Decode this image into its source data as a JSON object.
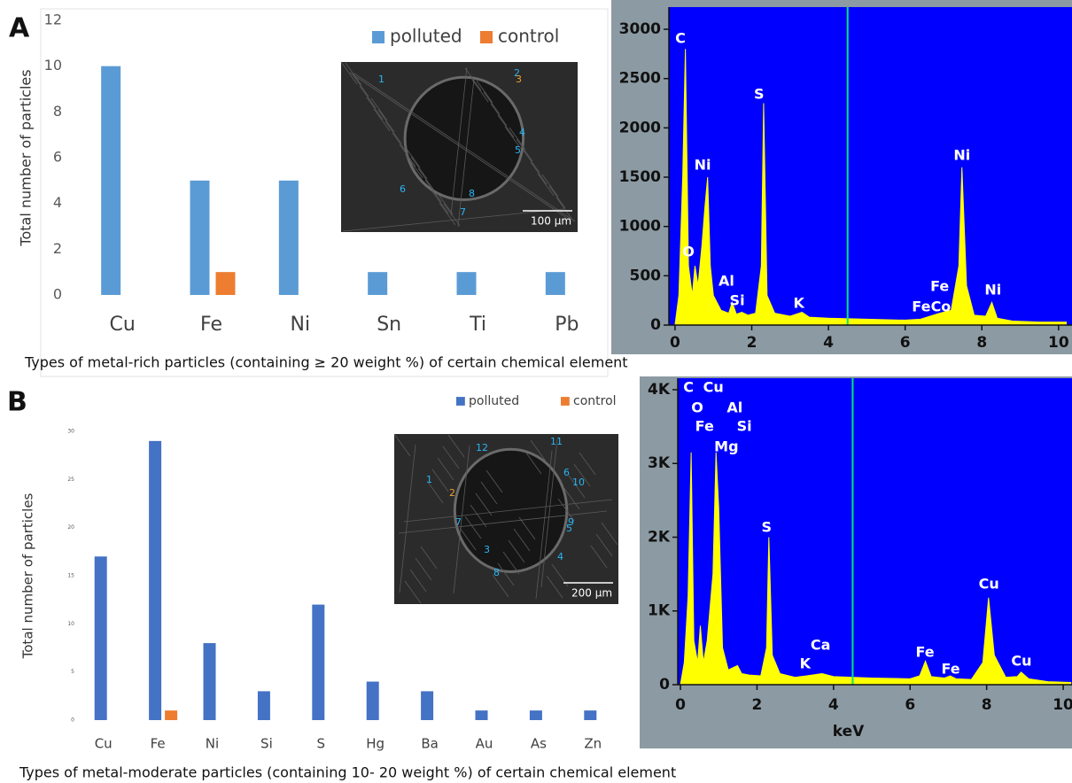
{
  "chart_data": [
    {
      "type": "bar",
      "panel_label": "A",
      "ylabel": "Total number of particles",
      "xlabel": "Types of metal-rich particles (containing ≥ 20 weight %) of certain chemical element",
      "categories": [
        "Cu",
        "Fe",
        "Ni",
        "Sn",
        "Ti",
        "Pb"
      ],
      "series": [
        {
          "name": "polluted",
          "color": "#5b9bd5",
          "values": [
            10,
            5,
            5,
            1,
            1,
            1
          ]
        },
        {
          "name": "control",
          "color": "#ed7d31",
          "values": [
            0,
            1,
            0,
            0,
            0,
            0
          ]
        }
      ],
      "ylim": [
        0,
        12
      ],
      "yticks": [
        0,
        2,
        4,
        6,
        8,
        10,
        12
      ],
      "grid": false,
      "legend": "top-right",
      "inset": {
        "labels": [
          "1",
          "2",
          "3",
          "4",
          "5",
          "6",
          "7",
          "8"
        ],
        "scale_bar": "100 µm"
      }
    },
    {
      "type": "spectrum",
      "color": "#ffff00",
      "background": "#0000ff",
      "cursor_x": 4.5,
      "x": [
        0,
        0.1,
        0.2,
        0.27,
        0.35,
        0.45,
        0.52,
        0.6,
        0.7,
        0.78,
        0.85,
        0.92,
        1.0,
        1.2,
        1.4,
        1.49,
        1.6,
        1.74,
        1.9,
        2.1,
        2.25,
        2.31,
        2.4,
        2.6,
        3.0,
        3.31,
        3.5,
        4.0,
        5,
        6,
        6.4,
        6.9,
        7.2,
        7.4,
        7.48,
        7.6,
        7.8,
        8.1,
        8.26,
        8.4,
        8.8,
        9.5,
        10.2
      ],
      "values": [
        0,
        300,
        1500,
        2800,
        600,
        300,
        600,
        400,
        800,
        1200,
        1500,
        600,
        300,
        150,
        120,
        230,
        110,
        130,
        100,
        120,
        600,
        2250,
        300,
        120,
        90,
        130,
        80,
        70,
        60,
        50,
        60,
        120,
        150,
        600,
        1600,
        400,
        100,
        90,
        230,
        70,
        40,
        30,
        30
      ],
      "xlim": [
        -0.16,
        10.35
      ],
      "xticks": [
        0,
        2,
        4,
        6,
        8,
        10
      ],
      "ylim": [
        0,
        3225
      ],
      "yticks": [
        0,
        500,
        1000,
        1500,
        2000,
        2500,
        3000
      ],
      "annotations": [
        {
          "text": "C",
          "x": 0.14,
          "y": 2900
        },
        {
          "text": "Ni",
          "x": 0.72,
          "y": 1617
        },
        {
          "text": "O",
          "x": 0.35,
          "y": 737
        },
        {
          "text": "Al",
          "x": 1.34,
          "y": 440
        },
        {
          "text": "Si",
          "x": 1.62,
          "y": 243
        },
        {
          "text": "S",
          "x": 2.19,
          "y": 2336
        },
        {
          "text": "K",
          "x": 3.23,
          "y": 216
        },
        {
          "text": "Fe",
          "x": 6.42,
          "y": 180
        },
        {
          "text": "Co",
          "x": 6.93,
          "y": 180
        },
        {
          "text": "Fe",
          "x": 6.9,
          "y": 386
        },
        {
          "text": "Ni",
          "x": 7.48,
          "y": 1716
        },
        {
          "text": "Ni",
          "x": 8.29,
          "y": 350
        }
      ]
    },
    {
      "type": "bar",
      "panel_label": "B",
      "ylabel": "Total number of particles",
      "xlabel": "Types of metal-moderate particles (containing 10- 20 weight %) of certain chemical element",
      "categories": [
        "Cu",
        "Fe",
        "Ni",
        "Si",
        "S",
        "Hg",
        "Ba",
        "Au",
        "As",
        "Zn"
      ],
      "series": [
        {
          "name": "polluted",
          "color": "#4472c4",
          "values": [
            17,
            29,
            8,
            3,
            12,
            4,
            3,
            1,
            1,
            1
          ]
        },
        {
          "name": "control",
          "color": "#ed7d31",
          "values": [
            0,
            1,
            0,
            0,
            0,
            0,
            0,
            0,
            0,
            0
          ]
        }
      ],
      "ylim": [
        0,
        30
      ],
      "yticks": [
        0,
        5,
        10,
        15,
        20,
        25,
        30
      ],
      "grid": false,
      "legend": "top-right",
      "inset": {
        "labels": [
          "1",
          "2",
          "3",
          "4",
          "5",
          "6",
          "7",
          "8",
          "9",
          "10",
          "11",
          "12"
        ],
        "scale_bar": "200 µm"
      }
    },
    {
      "type": "spectrum",
      "color": "#ffff00",
      "background": "#0000ff",
      "cursor_x": 4.5,
      "xlabel": "keV",
      "x": [
        0,
        0.1,
        0.2,
        0.28,
        0.35,
        0.45,
        0.52,
        0.6,
        0.7,
        0.85,
        0.93,
        1.0,
        1.1,
        1.25,
        1.49,
        1.6,
        1.8,
        2.1,
        2.25,
        2.31,
        2.4,
        2.6,
        3.0,
        3.3,
        3.7,
        4.0,
        5,
        6,
        6.25,
        6.4,
        6.55,
        6.9,
        7.05,
        7.2,
        7.6,
        7.9,
        8.05,
        8.2,
        8.5,
        8.8,
        8.9,
        9.1,
        9.6,
        10.2
      ],
      "values": [
        0,
        300,
        1200,
        3150,
        600,
        300,
        800,
        300,
        600,
        1500,
        3150,
        2400,
        500,
        200,
        260,
        150,
        130,
        120,
        500,
        2000,
        400,
        150,
        100,
        120,
        150,
        110,
        90,
        80,
        120,
        320,
        110,
        90,
        120,
        80,
        70,
        300,
        1180,
        400,
        100,
        110,
        170,
        80,
        40,
        30
      ],
      "xlim": [
        -0.07,
        10.23
      ],
      "xticks": [
        0,
        2,
        4,
        6,
        8,
        10
      ],
      "ylim": [
        0,
        4156
      ],
      "yticks": [
        0,
        {
          "value": 1000,
          "label": "1K"
        },
        {
          "value": 2000,
          "label": "2K"
        },
        {
          "value": 3000,
          "label": "3K"
        },
        {
          "value": 4000,
          "label": "4K"
        }
      ],
      "annotations": [
        {
          "text": "C",
          "x": 0.21,
          "y": 4024
        },
        {
          "text": "Cu",
          "x": 0.86,
          "y": 4024
        },
        {
          "text": "O",
          "x": 0.44,
          "y": 3748
        },
        {
          "text": "Al",
          "x": 1.42,
          "y": 3748
        },
        {
          "text": "Fe",
          "x": 0.63,
          "y": 3496
        },
        {
          "text": "Si",
          "x": 1.67,
          "y": 3496
        },
        {
          "text": "Mg",
          "x": 1.2,
          "y": 3220
        },
        {
          "text": "S",
          "x": 2.25,
          "y": 2127
        },
        {
          "text": "Ca",
          "x": 3.66,
          "y": 530
        },
        {
          "text": "K",
          "x": 3.26,
          "y": 276
        },
        {
          "text": "Fe",
          "x": 6.39,
          "y": 432
        },
        {
          "text": "Fe",
          "x": 7.06,
          "y": 204
        },
        {
          "text": "Cu",
          "x": 8.06,
          "y": 1357
        },
        {
          "text": "Cu",
          "x": 8.91,
          "y": 312
        }
      ]
    }
  ]
}
